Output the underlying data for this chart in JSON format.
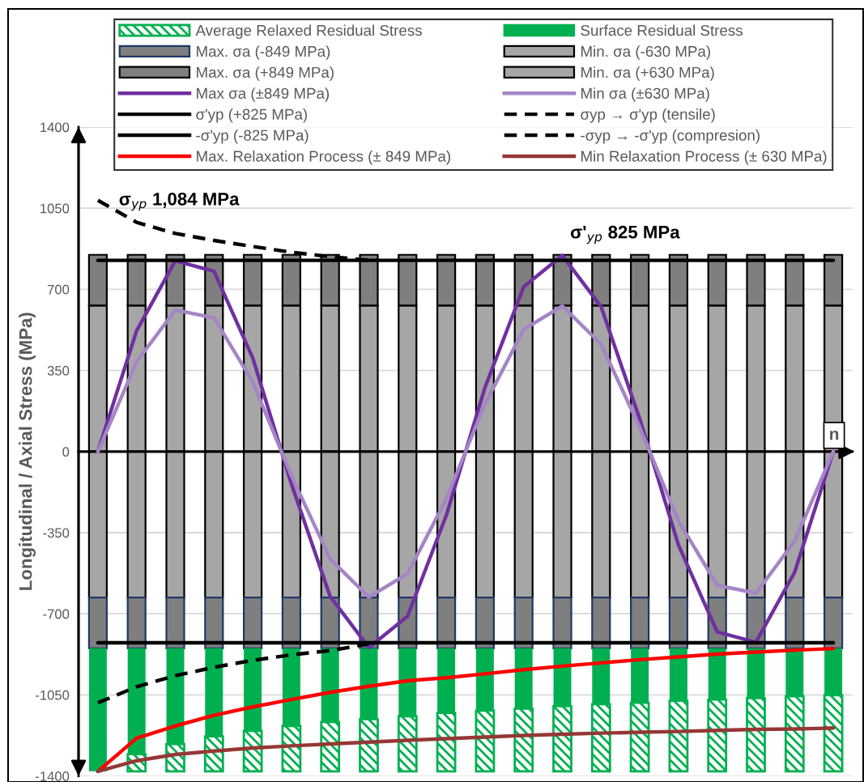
{
  "chart_data": {
    "type": "bar",
    "stacked": true,
    "ylabel": "Longitudinal / Axial Stress (MPa)",
    "xlabel": "n",
    "categories": [
      null,
      null,
      null,
      null,
      null,
      null,
      null,
      null,
      null,
      null,
      null,
      null,
      null,
      null,
      null,
      null,
      null,
      null,
      null,
      null
    ],
    "ylim": [
      -1400,
      1400
    ],
    "yticks": [
      -1400,
      -1050,
      -700,
      -350,
      0,
      350,
      700,
      1050,
      1400
    ],
    "grid": "y",
    "legend": "top",
    "tick_labels": "y",
    "series": [
      {
        "name": "Min. σa (+630 MPa)",
        "color": "#a6a6a6",
        "values": [
          630,
          630,
          630,
          630,
          630,
          630,
          630,
          630,
          630,
          630,
          630,
          630,
          630,
          630,
          630,
          630,
          630,
          630,
          630,
          630
        ]
      },
      {
        "name": "Max. σa (+849 MPa)",
        "color": "#7f7f7f",
        "values": [
          219,
          219,
          219,
          219,
          219,
          219,
          219,
          219,
          219,
          219,
          219,
          219,
          219,
          219,
          219,
          219,
          219,
          219,
          219,
          219
        ]
      },
      {
        "name": "Min. σa (-630 MPa)",
        "color": "#a6a6a6",
        "values": [
          -630,
          -630,
          -630,
          -630,
          -630,
          -630,
          -630,
          -630,
          -630,
          -630,
          -630,
          -630,
          -630,
          -630,
          -630,
          -630,
          -630,
          -630,
          -630,
          -630
        ]
      },
      {
        "name": "Max. σa (-849 MPa)",
        "color": "#7f7f7f",
        "values": [
          -219,
          -219,
          -219,
          -219,
          -219,
          -219,
          -219,
          -219,
          -219,
          -219,
          -219,
          -219,
          -219,
          -219,
          -219,
          -219,
          -219,
          -219,
          -219,
          -219
        ]
      },
      {
        "name": "Surface Residual Stress",
        "color": "#00b050",
        "values": [
          -531,
          -457,
          -413,
          -380,
          -356,
          -335,
          -318,
          -306,
          -293,
          -279,
          -269,
          -260,
          -250,
          -241,
          -235,
          -226,
          -221,
          -215,
          -207,
          -203
        ]
      },
      {
        "name": "Average Relaxed Residual Stress",
        "color": "#00b050",
        "values": [
          null,
          -74,
          -118,
          -151,
          -175,
          -196,
          -213,
          -225,
          -238,
          -252,
          -262,
          -271,
          -281,
          -290,
          -296,
          -305,
          -310,
          -316,
          -324,
          -328
        ]
      },
      {
        "name": "Max σa (±849 MPa)",
        "type": "line",
        "color": "#7030a0",
        "values": [
          0,
          521,
          823,
          778,
          404,
          -140,
          -625,
          -846,
          -711,
          -276,
          276,
          711,
          846,
          625,
          140,
          -404,
          -778,
          -823,
          -521,
          0
        ]
      },
      {
        "name": "Min σa (±630 MPa)",
        "type": "line",
        "color": "#a585c6",
        "values": [
          0,
          387,
          611,
          577,
          300,
          -104,
          -463,
          -628,
          -527,
          -205,
          205,
          527,
          628,
          463,
          104,
          -300,
          -577,
          -611,
          -387,
          0
        ]
      },
      {
        "name": "σ'yp (+825 MPa)",
        "type": "line",
        "color": "#000000",
        "line_style": "solid",
        "values": [
          825,
          825,
          825,
          825,
          825,
          825,
          825,
          825,
          825,
          825,
          825,
          825,
          825,
          825,
          825,
          825,
          825,
          825,
          825,
          825
        ]
      },
      {
        "name": "σyp → σ'yp (tensile)",
        "type": "line",
        "color": "#000000",
        "line_style": "dashed",
        "values": [
          1084,
          989,
          941,
          911,
          885,
          860,
          841,
          825,
          null,
          null,
          null,
          null,
          null,
          null,
          null,
          null,
          null,
          null,
          null,
          null
        ]
      },
      {
        "name": "-σ'yp (-825 MPa)",
        "type": "line",
        "color": "#000000",
        "line_style": "solid",
        "values": [
          -825,
          -825,
          -825,
          -825,
          -825,
          -825,
          -825,
          -825,
          -825,
          -825,
          -825,
          -825,
          -825,
          -825,
          -825,
          -825,
          -825,
          -825,
          -825,
          -825
        ]
      },
      {
        "name": "-σyp → -σ'yp (compresion)",
        "type": "line",
        "color": "#000000",
        "line_style": "dashed",
        "values": [
          -1084,
          -1015,
          -967,
          -931,
          -901,
          -877,
          -859,
          -830,
          null,
          null,
          null,
          null,
          null,
          null,
          null,
          null,
          null,
          null,
          null,
          null
        ]
      },
      {
        "name": "Max. Relaxation Process (± 849 MPa)",
        "type": "line",
        "color": "#ff0000",
        "values": [
          -1380,
          -1237,
          -1184,
          -1138,
          -1102,
          -1070,
          -1039,
          -1013,
          -989,
          -976,
          -959,
          -941,
          -926,
          -912,
          -898,
          -886,
          -874,
          -865,
          -857,
          -850
        ]
      },
      {
        "name": "Min Relaxation Process (± 630 MPa)",
        "type": "line",
        "color": "#953735",
        "values": [
          -1380,
          -1334,
          -1307,
          -1292,
          -1279,
          -1270,
          -1262,
          -1254,
          -1246,
          -1239,
          -1232,
          -1225,
          -1220,
          -1215,
          -1211,
          -1208,
          -1203,
          -1199,
          -1197,
          -1193
        ]
      }
    ],
    "annotations": [
      "σ$_{yp}$ 1,084 MPa",
      "σ'$_{yp}$ 825 MPa"
    ]
  }
}
